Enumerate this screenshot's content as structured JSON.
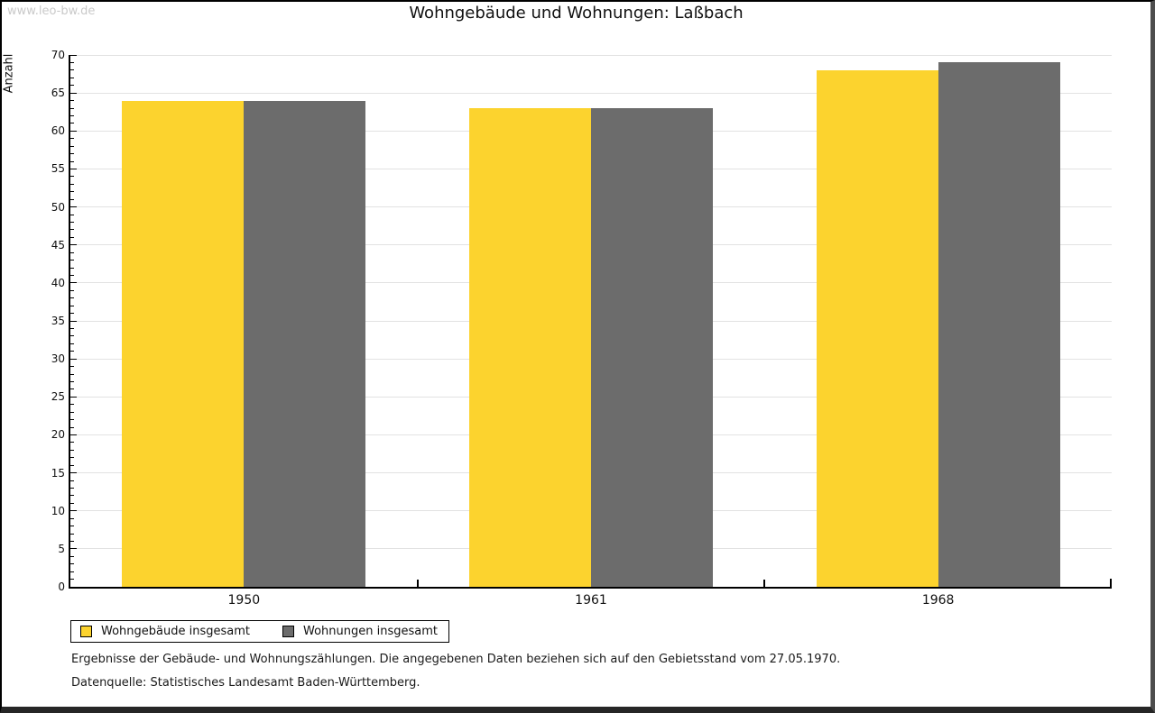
{
  "watermark": "www.leo-bw.de",
  "chart_data": {
    "type": "bar",
    "title": "Wohngebäude und Wohnungen: Laßbach",
    "categories": [
      "1950",
      "1961",
      "1968"
    ],
    "series": [
      {
        "name": "Wohngebäude insgesamt",
        "color": "#FCD32E",
        "values": [
          64,
          63,
          68
        ]
      },
      {
        "name": "Wohnungen insgesamt",
        "color": "#6C6C6C",
        "values": [
          64,
          63,
          69
        ]
      }
    ],
    "xlabel": "",
    "ylabel": "Anzahl",
    "ylim": [
      0,
      70
    ],
    "ytick_major_step": 5,
    "ytick_minor_step": 1,
    "grid": true,
    "legend_position": "bottom-left"
  },
  "footer": {
    "note": "Ergebnisse der Gebäude- und Wohnungszählungen. Die angegebenen Daten beziehen sich auf den Gebietsstand vom 27.05.1970.",
    "source": "Datenquelle: Statistisches Landesamt Baden-Württemberg."
  }
}
